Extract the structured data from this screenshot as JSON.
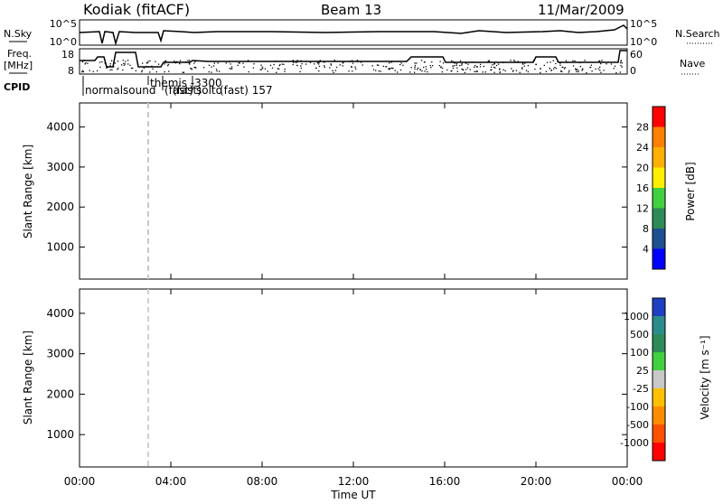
{
  "header": {
    "site": "Kodiak (fitACF)",
    "beam": "Beam 13",
    "date": "11/Mar/2009"
  },
  "top_panels": {
    "nsky_label": "N.Sky",
    "nsky_ticks": [
      "10^5",
      "10^0"
    ],
    "nsearch_label": "N.Search",
    "nsearch_ticks": [
      "10^5",
      "10^0"
    ],
    "freq_label_1": "Freq.",
    "freq_label_2": "[MHz]",
    "freq_ticks": [
      "18",
      "8"
    ],
    "nave_label": "Nave",
    "nave_ticks": [
      "60",
      "0"
    ],
    "cpid_label": "CPID",
    "cpid_names": [
      "normalsound",
      "(fast)",
      "themis -3300",
      "(fast)",
      "solto",
      "(fast) 157"
    ]
  },
  "chart_data": [
    {
      "type": "heatmap",
      "name": "power",
      "ylabel": "Slant Range [km]",
      "yticks": [
        "4000",
        "3000",
        "2000",
        "1000"
      ],
      "ylim": [
        200,
        4600
      ],
      "colorbar_label": "Power [dB]",
      "colorbar_ticks": [
        "28",
        "24",
        "20",
        "16",
        "12",
        "8",
        "4"
      ],
      "colorbar_colors": [
        "#ff0000",
        "#ff7f00",
        "#ffb000",
        "#ffee00",
        "#40d040",
        "#2e8b57",
        "#1e5090",
        "#0000ff"
      ]
    },
    {
      "type": "heatmap",
      "name": "velocity",
      "ylabel": "Slant Range [km]",
      "yticks": [
        "4000",
        "3000",
        "2000",
        "1000"
      ],
      "ylim": [
        200,
        4600
      ],
      "colorbar_label": "Velocity [m s⁻¹]",
      "colorbar_ticks": [
        "1000",
        "500",
        "100",
        "25",
        "-25",
        "-100",
        "-500",
        "-1000"
      ],
      "colorbar_colors": [
        "#1e3fbf",
        "#2b8c8c",
        "#2e8b57",
        "#40d040",
        "#c8c8c8",
        "#ffc000",
        "#ff8c00",
        "#ff5000",
        "#ff0000"
      ]
    }
  ],
  "xaxis": {
    "ticks": [
      "00:00",
      "04:00",
      "08:00",
      "12:00",
      "16:00",
      "20:00",
      "00:00"
    ],
    "label": "Time UT"
  }
}
